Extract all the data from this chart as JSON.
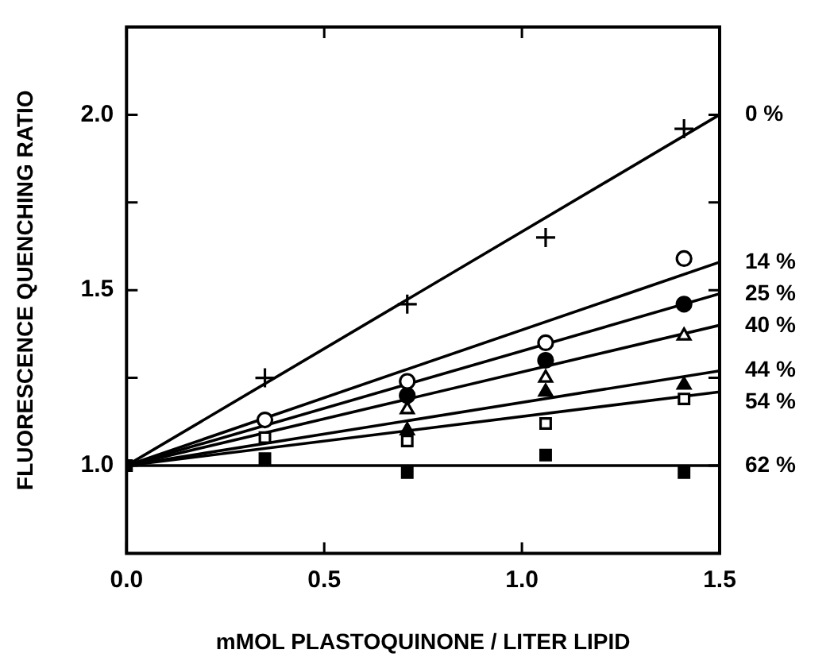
{
  "chart_data": {
    "type": "scatter",
    "xlabel": "mMOL PLASTOQUINONE / LITER LIPID",
    "ylabel": "FLUORESCENCE QUENCHING RATIO",
    "xlim": [
      0,
      1.5
    ],
    "ylim": [
      0.75,
      2.25
    ],
    "xticks": [
      {
        "value": 0,
        "label": "0.0"
      },
      {
        "value": 0.5,
        "label": "0.5"
      },
      {
        "value": 1,
        "label": "1.0"
      },
      {
        "value": 1.5,
        "label": "1.5"
      }
    ],
    "yticks": [
      {
        "value": 1,
        "label": "1.0"
      },
      {
        "value": 1.25,
        "label": null
      },
      {
        "value": 1.5,
        "label": "1.5"
      },
      {
        "value": 1.75,
        "label": null
      },
      {
        "value": 2,
        "label": "2.0"
      }
    ],
    "grid": false,
    "legend": "right",
    "series": [
      {
        "type": "scatter",
        "marker": "cross",
        "color": "#000000",
        "x": [
          0.35,
          0.71,
          1.06,
          1.41
        ],
        "values": [
          1.25,
          1.46,
          1.65,
          1.96
        ]
      },
      {
        "type": "scatter",
        "marker": "circle",
        "color": "#ffffff",
        "x": [
          0.35,
          0.71,
          1.06,
          1.41
        ],
        "values": [
          1.13,
          1.24,
          1.35,
          1.59
        ]
      },
      {
        "type": "scatter",
        "marker": "circle",
        "color": "#000000",
        "x": [
          0.71,
          1.06,
          1.41
        ],
        "values": [
          1.2,
          1.3,
          1.46
        ]
      },
      {
        "type": "scatter",
        "marker": "triangle",
        "color": "#ffffff",
        "x": [
          0.71,
          1.06,
          1.41
        ],
        "values": [
          1.16,
          1.25,
          1.37
        ]
      },
      {
        "type": "scatter",
        "marker": "triangle",
        "color": "#000000",
        "x": [
          0.71,
          1.06,
          1.41
        ],
        "values": [
          1.1,
          1.21,
          1.23
        ]
      },
      {
        "type": "scatter",
        "marker": "square",
        "color": "#ffffff",
        "x": [
          0.35,
          0.71,
          1.06,
          1.41
        ],
        "values": [
          1.08,
          1.07,
          1.12,
          1.19
        ]
      },
      {
        "type": "scatter",
        "marker": "square",
        "color": "#000000",
        "x": [
          0,
          0.35,
          0.71,
          1.06,
          1.41
        ],
        "values": [
          1.0,
          1.02,
          0.98,
          1.03,
          0.98
        ]
      },
      {
        "type": "line",
        "name": "0 %",
        "color": "#000000",
        "x": [
          0,
          1.5
        ],
        "values": [
          1.0,
          2.0
        ]
      },
      {
        "type": "line",
        "name": "14 %",
        "color": "#000000",
        "x": [
          0,
          1.5
        ],
        "values": [
          1.0,
          1.58
        ]
      },
      {
        "type": "line",
        "name": "25 %",
        "color": "#000000",
        "x": [
          0,
          1.5
        ],
        "values": [
          1.0,
          1.49
        ]
      },
      {
        "type": "line",
        "name": "40 %",
        "color": "#000000",
        "x": [
          0,
          1.5
        ],
        "values": [
          1.0,
          1.4
        ]
      },
      {
        "type": "line",
        "name": "44 %",
        "color": "#000000",
        "x": [
          0,
          1.5
        ],
        "values": [
          1.0,
          1.27
        ]
      },
      {
        "type": "line",
        "name": "54 %",
        "color": "#000000",
        "x": [
          0,
          1.5
        ],
        "values": [
          1.0,
          1.21
        ]
      },
      {
        "type": "line",
        "name": "62 %",
        "color": "#000000",
        "x": [
          0,
          1.5
        ],
        "values": [
          1.0,
          1.0
        ]
      }
    ]
  }
}
